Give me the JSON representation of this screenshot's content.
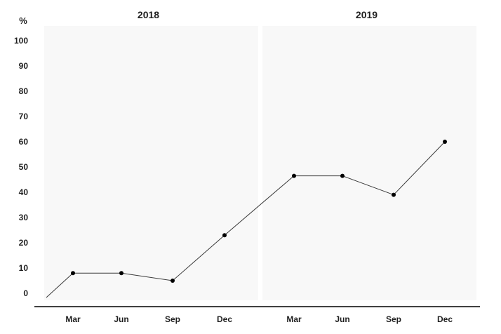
{
  "chart_data": {
    "type": "line",
    "ylabel": "%",
    "ylim": [
      0,
      100
    ],
    "yticks": [
      0,
      10,
      20,
      30,
      40,
      50,
      60,
      70,
      80,
      90,
      100
    ],
    "grid": false,
    "panels": [
      "2018",
      "2019"
    ],
    "categories": [
      "Mar",
      "Jun",
      "Sep",
      "Dec"
    ],
    "series": [
      {
        "values": [
          {
            "panel": "2018",
            "x": "Mar",
            "y": 8
          },
          {
            "panel": "2018",
            "x": "Jun",
            "y": 8
          },
          {
            "panel": "2018",
            "x": "Sep",
            "y": 5
          },
          {
            "panel": "2018",
            "x": "Dec",
            "y": 23
          },
          {
            "panel": "2019",
            "x": "Mar",
            "y": 46.5
          },
          {
            "panel": "2019",
            "x": "Jun",
            "y": 46.5
          },
          {
            "panel": "2019",
            "x": "Sep",
            "y": 39
          },
          {
            "panel": "2019",
            "x": "Dec",
            "y": 60
          }
        ]
      }
    ],
    "colors": {
      "line": "#3a3a3a",
      "marker": "#000000",
      "panel_background": "#f8f8f8"
    }
  }
}
